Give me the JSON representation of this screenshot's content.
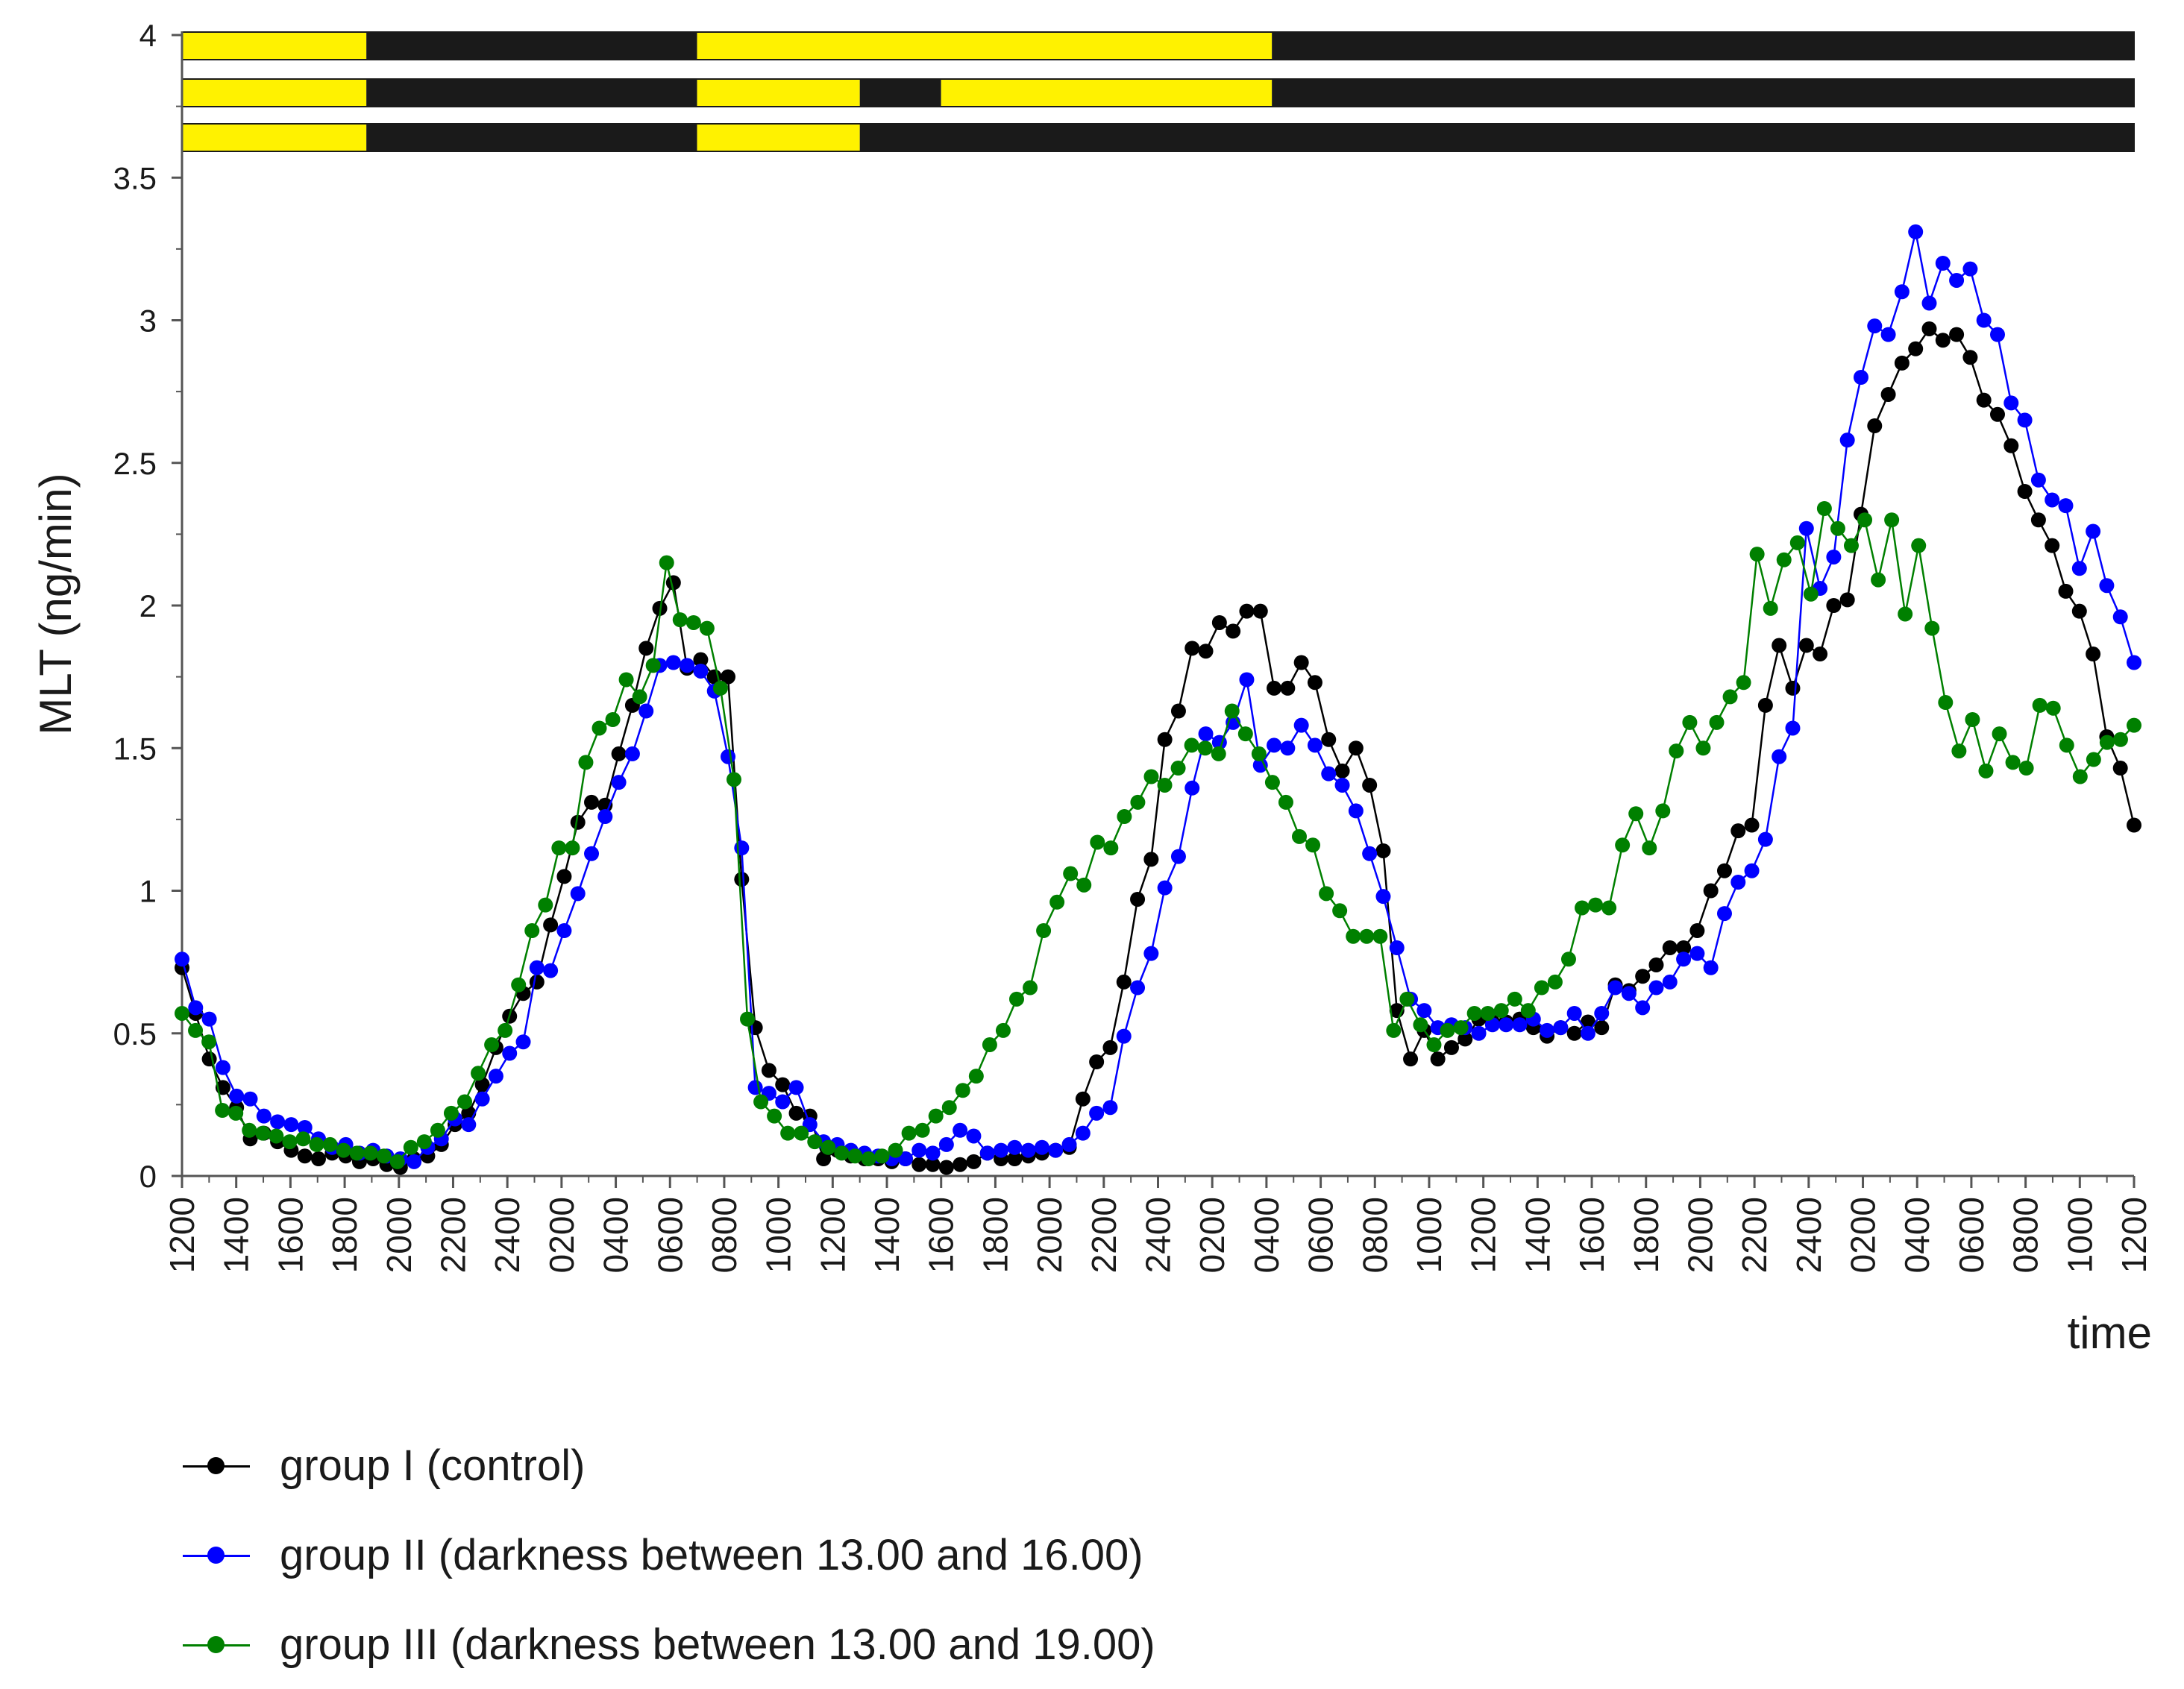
{
  "chart_data": {
    "type": "line",
    "title": "",
    "xlabel": "time",
    "ylabel": "MLT (ng/min)",
    "ylim": [
      0,
      4
    ],
    "yticks": [
      "0",
      "0.5",
      "1",
      "1.5",
      "2",
      "2.5",
      "3",
      "3.5",
      "4"
    ],
    "xlim": [
      0,
      72
    ],
    "xticks": [
      "1200",
      "1400",
      "1600",
      "1800",
      "2000",
      "2200",
      "2400",
      "0200",
      "0400",
      "0600",
      "0800",
      "1000",
      "1200",
      "1400",
      "1600",
      "1800",
      "2000",
      "2200",
      "2400",
      "0200",
      "0400",
      "0600",
      "0800",
      "1000",
      "1200",
      "1400",
      "1600",
      "1800",
      "2000",
      "2200",
      "2400",
      "0200",
      "0400",
      "0600",
      "0800",
      "1000",
      "1200"
    ],
    "x_unit_note": "hours elapsed from first 1200 tick; ticks every 2 h",
    "light_bars": [
      {
        "segments": [
          {
            "start": 0,
            "end": 6.8,
            "state": "light"
          },
          {
            "start": 6.8,
            "end": 19,
            "state": "dark"
          },
          {
            "start": 19,
            "end": 40.2,
            "state": "light"
          },
          {
            "start": 40.2,
            "end": 72,
            "state": "dark"
          }
        ]
      },
      {
        "segments": [
          {
            "start": 0,
            "end": 6.8,
            "state": "light"
          },
          {
            "start": 6.8,
            "end": 19,
            "state": "dark"
          },
          {
            "start": 19,
            "end": 25,
            "state": "light"
          },
          {
            "start": 25,
            "end": 28,
            "state": "dark"
          },
          {
            "start": 28,
            "end": 40.2,
            "state": "light"
          },
          {
            "start": 40.2,
            "end": 72,
            "state": "dark"
          }
        ]
      },
      {
        "segments": [
          {
            "start": 0,
            "end": 6.8,
            "state": "light"
          },
          {
            "start": 6.8,
            "end": 19,
            "state": "dark"
          },
          {
            "start": 19,
            "end": 25,
            "state": "light"
          },
          {
            "start": 25,
            "end": 72,
            "state": "dark"
          }
        ]
      }
    ],
    "colors": {
      "light": "#fff200",
      "dark": "#1a1a1a",
      "axis": "#555555"
    },
    "series": [
      {
        "name": "group I (control)",
        "color": "#000000",
        "values": [
          0.73,
          0.57,
          0.41,
          0.31,
          0.24,
          0.13,
          0.15,
          0.12,
          0.09,
          0.07,
          0.06,
          0.08,
          0.07,
          0.05,
          0.06,
          0.04,
          0.03,
          0.06,
          0.07,
          0.11,
          0.18,
          0.22,
          0.32,
          0.45,
          0.56,
          0.64,
          0.68,
          0.88,
          1.05,
          1.24,
          1.31,
          1.3,
          1.48,
          1.65,
          1.85,
          1.99,
          2.08,
          1.78,
          1.81,
          1.75,
          1.75,
          1.04,
          0.52,
          0.37,
          0.32,
          0.22,
          0.21,
          0.06,
          0.09,
          0.07,
          0.06,
          0.06,
          0.05,
          0.06,
          0.04,
          0.04,
          0.03,
          0.04,
          0.05,
          0.08,
          0.06,
          0.06,
          0.07,
          0.08,
          0.09,
          0.1,
          0.27,
          0.4,
          0.45,
          0.68,
          0.97,
          1.11,
          1.53,
          1.63,
          1.85,
          1.84,
          1.94,
          1.91,
          1.98,
          1.98,
          1.71,
          1.71,
          1.8,
          1.73,
          1.53,
          1.42,
          1.5,
          1.37,
          1.14,
          0.58,
          0.41,
          0.51,
          0.41,
          0.45,
          0.48,
          0.55,
          0.54,
          0.54,
          0.55,
          0.52,
          0.49,
          0.52,
          0.5,
          0.54,
          0.52,
          0.67,
          0.65,
          0.7,
          0.74,
          0.8,
          0.8,
          0.86,
          1.0,
          1.07,
          1.21,
          1.23,
          1.65,
          1.86,
          1.71,
          1.86,
          1.83,
          2.0,
          2.02,
          2.32,
          2.63,
          2.74,
          2.85,
          2.9,
          2.97,
          2.93,
          2.95,
          2.87,
          2.72,
          2.67,
          2.56,
          2.4,
          2.3,
          2.21,
          2.05,
          1.98,
          1.83,
          1.54,
          1.43,
          1.23
        ]
      },
      {
        "name": "group II (darkness between 13.00 and 16.00)",
        "color": "#0000ff",
        "values": [
          0.76,
          0.59,
          0.55,
          0.38,
          0.28,
          0.27,
          0.21,
          0.19,
          0.18,
          0.17,
          0.13,
          0.1,
          0.11,
          0.08,
          0.09,
          0.07,
          0.06,
          0.05,
          0.1,
          0.13,
          0.2,
          0.18,
          0.27,
          0.35,
          0.43,
          0.47,
          0.73,
          0.72,
          0.86,
          0.99,
          1.13,
          1.26,
          1.38,
          1.48,
          1.63,
          1.79,
          1.8,
          1.79,
          1.77,
          1.7,
          1.47,
          1.15,
          0.31,
          0.29,
          0.26,
          0.31,
          0.18,
          0.12,
          0.11,
          0.09,
          0.08,
          0.07,
          0.06,
          0.06,
          0.09,
          0.08,
          0.11,
          0.16,
          0.14,
          0.08,
          0.09,
          0.1,
          0.09,
          0.1,
          0.09,
          0.11,
          0.15,
          0.22,
          0.24,
          0.49,
          0.66,
          0.78,
          1.01,
          1.12,
          1.36,
          1.55,
          1.52,
          1.59,
          1.74,
          1.44,
          1.51,
          1.5,
          1.58,
          1.51,
          1.41,
          1.37,
          1.28,
          1.13,
          0.98,
          0.8,
          0.62,
          0.58,
          0.52,
          0.53,
          0.52,
          0.5,
          0.53,
          0.53,
          0.53,
          0.55,
          0.51,
          0.52,
          0.57,
          0.5,
          0.57,
          0.66,
          0.64,
          0.59,
          0.66,
          0.68,
          0.76,
          0.78,
          0.73,
          0.92,
          1.03,
          1.07,
          1.18,
          1.47,
          1.57,
          2.27,
          2.06,
          2.17,
          2.58,
          2.8,
          2.98,
          2.95,
          3.1,
          3.31,
          3.06,
          3.2,
          3.14,
          3.18,
          3.0,
          2.95,
          2.71,
          2.65,
          2.44,
          2.37,
          2.35,
          2.13,
          2.26,
          2.07,
          1.96,
          1.8
        ]
      },
      {
        "name": "group III (darkness between 13.00 and 19.00)",
        "color": "#008000",
        "values": [
          0.57,
          0.51,
          0.47,
          0.23,
          0.22,
          0.16,
          0.15,
          0.14,
          0.12,
          0.13,
          0.11,
          0.11,
          0.09,
          0.08,
          0.08,
          0.07,
          0.05,
          0.1,
          0.12,
          0.16,
          0.22,
          0.26,
          0.36,
          0.46,
          0.51,
          0.67,
          0.86,
          0.95,
          1.15,
          1.15,
          1.45,
          1.57,
          1.6,
          1.74,
          1.68,
          1.79,
          2.15,
          1.95,
          1.94,
          1.92,
          1.71,
          1.39,
          0.55,
          0.26,
          0.21,
          0.15,
          0.15,
          0.12,
          0.1,
          0.08,
          0.07,
          0.06,
          0.07,
          0.09,
          0.15,
          0.16,
          0.21,
          0.24,
          0.3,
          0.35,
          0.46,
          0.51,
          0.62,
          0.66,
          0.86,
          0.96,
          1.06,
          1.02,
          1.17,
          1.15,
          1.26,
          1.31,
          1.4,
          1.37,
          1.43,
          1.51,
          1.5,
          1.48,
          1.63,
          1.55,
          1.48,
          1.38,
          1.31,
          1.19,
          1.16,
          0.99,
          0.93,
          0.84,
          0.84,
          0.84,
          0.51,
          0.62,
          0.53,
          0.46,
          0.51,
          0.52,
          0.57,
          0.57,
          0.58,
          0.62,
          0.58,
          0.66,
          0.68,
          0.76,
          0.94,
          0.95,
          0.94,
          1.16,
          1.27,
          1.15,
          1.28,
          1.49,
          1.59,
          1.5,
          1.59,
          1.68,
          1.73,
          2.18,
          1.99,
          2.16,
          2.22,
          2.04,
          2.34,
          2.27,
          2.21,
          2.3,
          2.09,
          2.3,
          1.97,
          2.21,
          1.92,
          1.66,
          1.49,
          1.6,
          1.42,
          1.55,
          1.45,
          1.43,
          1.65,
          1.64,
          1.51,
          1.4,
          1.46,
          1.52,
          1.53,
          1.58
        ]
      }
    ],
    "legend_position": "bottom-left"
  }
}
